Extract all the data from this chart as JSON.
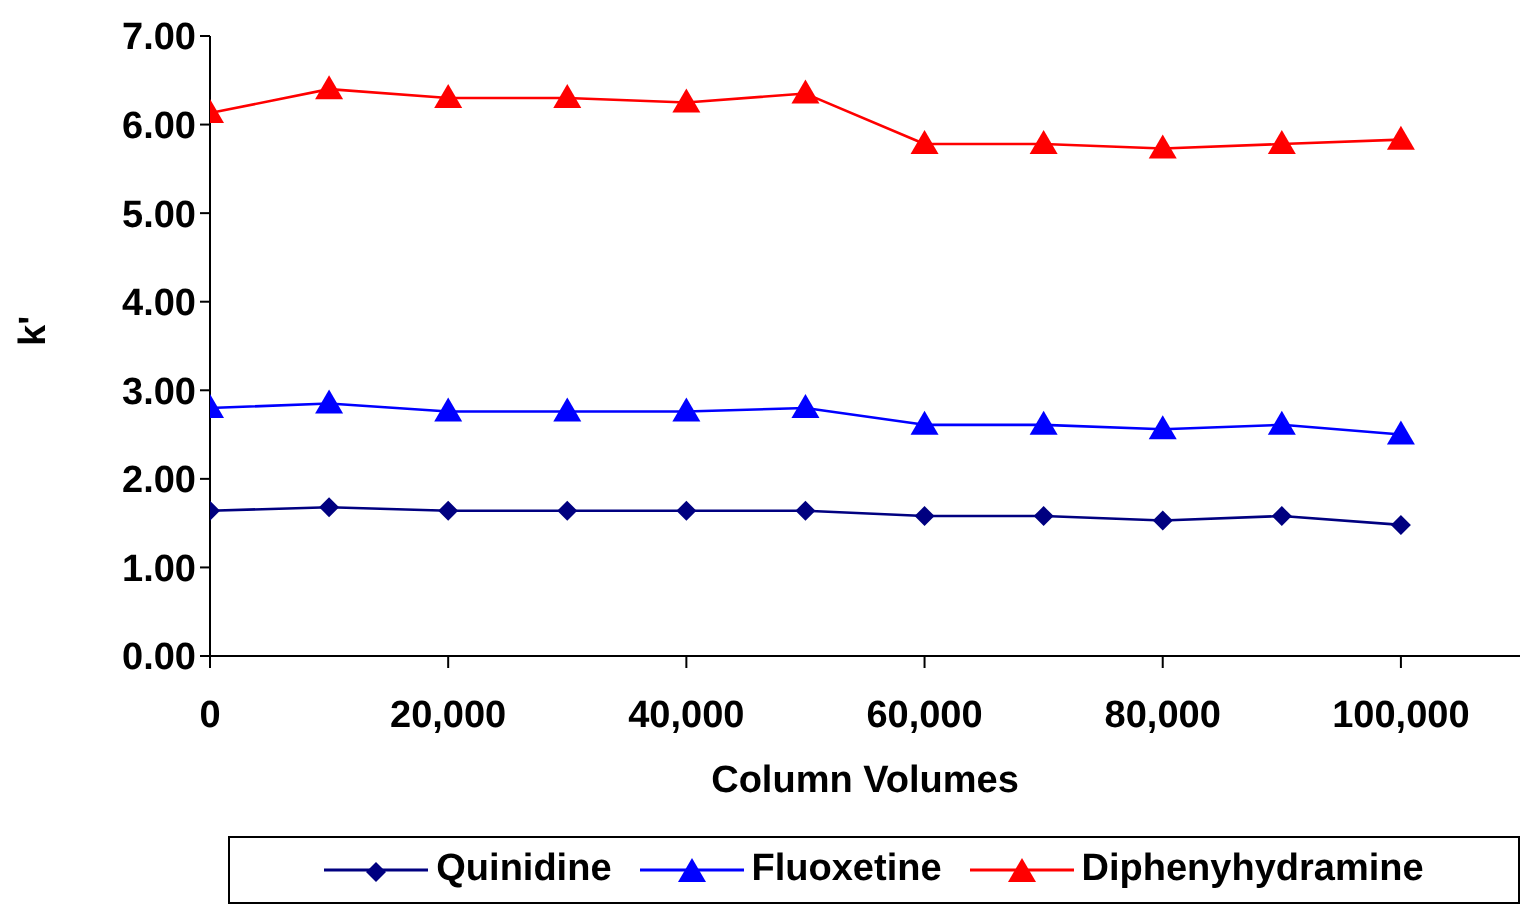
{
  "chart_data": {
    "type": "line",
    "xlabel": "Column Volumes",
    "ylabel": "k'",
    "x": [
      0,
      10000,
      20000,
      30000,
      40000,
      50000,
      60000,
      70000,
      80000,
      90000,
      100000
    ],
    "series": [
      {
        "name": "Quinidine",
        "color": "#000080",
        "marker": "diamond",
        "values": [
          1.64,
          1.68,
          1.64,
          1.64,
          1.64,
          1.64,
          1.58,
          1.58,
          1.53,
          1.58,
          1.48
        ]
      },
      {
        "name": "Fluoxetine",
        "color": "#0000ff",
        "marker": "triangle",
        "values": [
          2.8,
          2.85,
          2.76,
          2.76,
          2.76,
          2.8,
          2.61,
          2.61,
          2.56,
          2.61,
          2.5
        ]
      },
      {
        "name": "Diphenyhydramine",
        "color": "#ff0000",
        "marker": "triangle",
        "values": [
          6.13,
          6.4,
          6.3,
          6.3,
          6.25,
          6.35,
          5.78,
          5.78,
          5.73,
          5.78,
          5.83
        ]
      }
    ],
    "xlim": [
      0,
      110000
    ],
    "xticks": [
      {
        "value": 0,
        "label": "0"
      },
      {
        "value": 20000,
        "label": "20,000"
      },
      {
        "value": 40000,
        "label": "40,000"
      },
      {
        "value": 60000,
        "label": "60,000"
      },
      {
        "value": 80000,
        "label": "80,000"
      },
      {
        "value": 100000,
        "label": "100,000"
      }
    ],
    "ylim": [
      0,
      7
    ],
    "yticks": [
      {
        "value": 0,
        "label": "0.00"
      },
      {
        "value": 1,
        "label": "1.00"
      },
      {
        "value": 2,
        "label": "2.00"
      },
      {
        "value": 3,
        "label": "3.00"
      },
      {
        "value": 4,
        "label": "4.00"
      },
      {
        "value": 5,
        "label": "5.00"
      },
      {
        "value": 6,
        "label": "6.00"
      },
      {
        "value": 7,
        "label": "7.00"
      }
    ],
    "grid": false,
    "legend": "bottom",
    "line_style": "solid"
  }
}
